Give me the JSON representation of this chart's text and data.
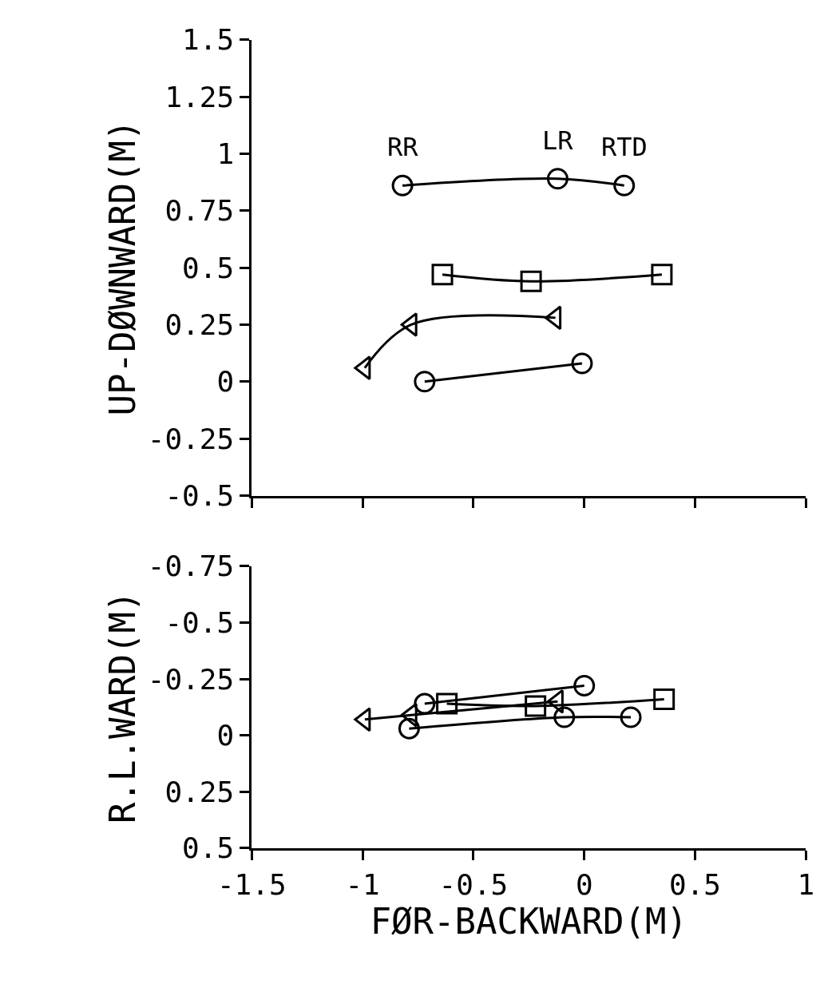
{
  "chart_data": [
    {
      "type": "line",
      "ylabel": "UP-DØWNWARD(M)",
      "xlim": [
        -1.5,
        1
      ],
      "xticks": [
        -1.5,
        -1,
        -0.5,
        0,
        0.5,
        1
      ],
      "ylim": [
        -0.5,
        1.5
      ],
      "yticks": [
        -0.5,
        -0.25,
        0,
        0.25,
        0.5,
        0.75,
        1,
        1.25,
        1.5
      ],
      "tick_labels": "y",
      "annotations": [
        {
          "text": "RR",
          "x": -0.82,
          "y": 0.86
        },
        {
          "text": "LR",
          "x": -0.12,
          "y": 0.89
        },
        {
          "text": "RTD",
          "x": 0.18,
          "y": 0.86
        }
      ],
      "series": [
        {
          "color": "#000000",
          "marker": "circle",
          "x": [
            -0.82,
            -0.12,
            0.18
          ],
          "values": [
            0.86,
            0.89,
            0.86
          ]
        },
        {
          "color": "#000000",
          "marker": "square",
          "x": [
            -0.64,
            -0.24,
            0.35
          ],
          "values": [
            0.47,
            0.44,
            0.47
          ]
        },
        {
          "color": "#000000",
          "marker": "triangle",
          "x": [
            -0.99,
            -0.78,
            -0.13
          ],
          "values": [
            0.06,
            0.25,
            0.28
          ]
        },
        {
          "color": "#000000",
          "marker": "circle",
          "x": [
            -0.72,
            -0.01
          ],
          "values": [
            0.0,
            0.08
          ]
        }
      ]
    },
    {
      "type": "line",
      "xlabel": "FØR-BACKWARD(M)",
      "ylabel": "R.L.WARD(M)",
      "xlim": [
        -1.5,
        1
      ],
      "xticks": [
        -1.5,
        -1,
        -0.5,
        0,
        0.5,
        1
      ],
      "ylim": [
        0.5,
        -0.75
      ],
      "yticks": [
        -0.75,
        -0.5,
        -0.25,
        0,
        0.25,
        0.5
      ],
      "series": [
        {
          "color": "#000000",
          "marker": "circle",
          "x": [
            -0.79,
            -0.09,
            0.21
          ],
          "values": [
            -0.03,
            -0.08,
            -0.08
          ]
        },
        {
          "color": "#000000",
          "marker": "square",
          "x": [
            -0.62,
            -0.22,
            0.36
          ],
          "values": [
            -0.14,
            -0.13,
            -0.16
          ]
        },
        {
          "color": "#000000",
          "marker": "triangle",
          "x": [
            -0.99,
            -0.78,
            -0.12
          ],
          "values": [
            -0.07,
            -0.09,
            -0.15
          ]
        },
        {
          "color": "#000000",
          "marker": "circle",
          "x": [
            -0.72,
            0.0
          ],
          "values": [
            -0.14,
            -0.22
          ]
        }
      ]
    }
  ]
}
